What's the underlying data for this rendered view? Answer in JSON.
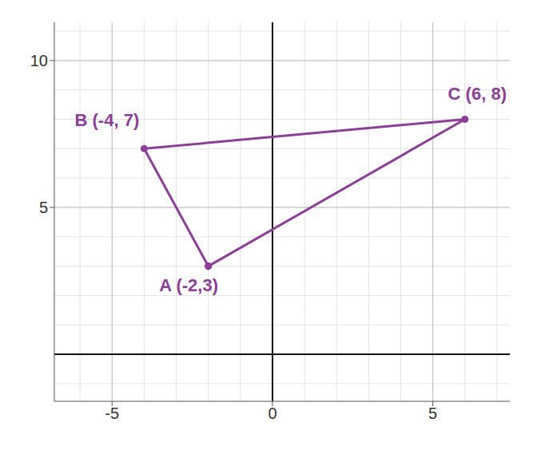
{
  "chart_data": {
    "type": "scatter",
    "x": [
      -2,
      -4,
      6
    ],
    "values": [
      3,
      7,
      8
    ],
    "annotations": [
      "A (-2,3)",
      "B (-4, 7)",
      "C (6, 8)"
    ],
    "color": "#8b3f96",
    "marker": "circle",
    "line_style": "solid",
    "xlim": [
      -6.8,
      7.4
    ],
    "ylim": [
      -1.6,
      11.3
    ],
    "xticks": [
      -5,
      0,
      5
    ],
    "yticks": [
      5,
      10
    ],
    "grid": true
  }
}
